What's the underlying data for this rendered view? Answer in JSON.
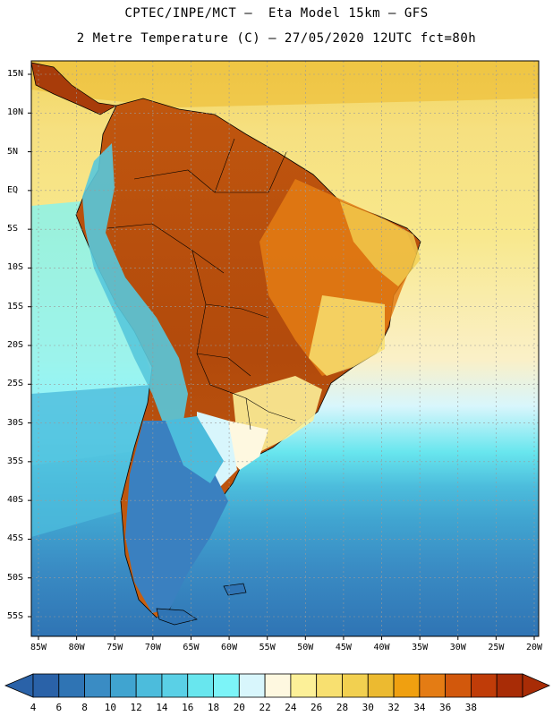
{
  "header": {
    "line1": "CPTEC/INPE/MCT –  Eta Model 15km – GFS",
    "line2": "2 Metre Temperature (C) – 27/05/2020 12UTC fct=80h"
  },
  "map": {
    "variable": "2 Metre Temperature",
    "units": "C",
    "lat_labels": [
      "15N",
      "10N",
      "5N",
      "EQ",
      "5S",
      "10S",
      "15S",
      "20S",
      "25S",
      "30S",
      "35S",
      "40S",
      "45S",
      "50S",
      "55S"
    ],
    "lat_values": [
      15,
      10,
      5,
      0,
      -5,
      -10,
      -15,
      -20,
      -25,
      -30,
      -35,
      -40,
      -45,
      -50,
      -55
    ],
    "lon_labels": [
      "85W",
      "80W",
      "75W",
      "70W",
      "65W",
      "60W",
      "55W",
      "50W",
      "45W",
      "40W",
      "35W",
      "30W",
      "25W",
      "20W"
    ],
    "lon_values": [
      -85,
      -80,
      -75,
      -70,
      -65,
      -60,
      -55,
      -50,
      -45,
      -40,
      -35,
      -30,
      -25,
      -20
    ],
    "colors": {
      "ocean_north": "#f2d560",
      "ocean_tropic": "#f7e88c",
      "ocean_mid": "#8ee4ee",
      "ocean_south": "#2f74b4",
      "amazon": "#a83c0a",
      "brazil_east": "#d67018",
      "andes": "#58c8dc",
      "patagonia": "#3a80c0",
      "border": "#000000",
      "grid": "#9a9a9a"
    }
  },
  "colorbar": {
    "labels": [
      "4",
      "6",
      "8",
      "10",
      "12",
      "14",
      "16",
      "18",
      "20",
      "22",
      "24",
      "26",
      "28",
      "30",
      "32",
      "34",
      "36",
      "38"
    ],
    "colors": [
      "#2a62a8",
      "#2f74b4",
      "#3a8cc4",
      "#40a4d0",
      "#4cbcdc",
      "#5ad0e6",
      "#68e6ee",
      "#7cf4f8",
      "#d8f6fc",
      "#fef8e0",
      "#fcf098",
      "#f8e070",
      "#f2d050",
      "#ecba30",
      "#f0a010",
      "#e47c14",
      "#d2580c",
      "#c03c08",
      "#a82c06"
    ]
  }
}
